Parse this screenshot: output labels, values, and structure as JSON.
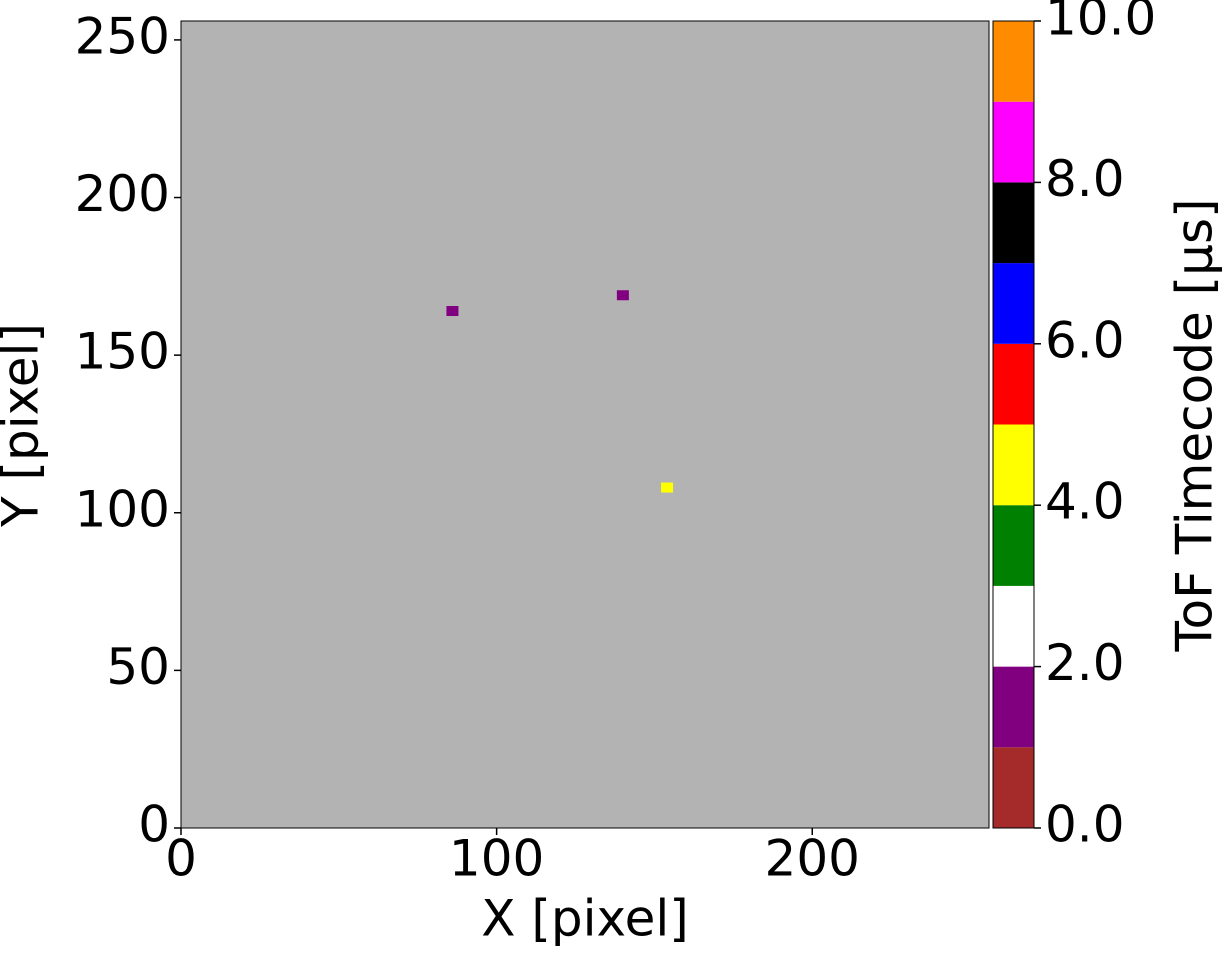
{
  "chart_data": {
    "type": "scatter",
    "xlabel": "X [pixel]",
    "ylabel": "Y [pixel]",
    "background": "#b3b3b3",
    "x": [
      86,
      140,
      154
    ],
    "y": [
      164,
      169,
      108
    ],
    "values": [
      1.5,
      1.5,
      4.5
    ],
    "xlim": [
      0,
      256
    ],
    "ylim": [
      0,
      256
    ],
    "xticks": [
      0,
      100,
      200
    ],
    "yticks": [
      0,
      50,
      100,
      150,
      200,
      250
    ],
    "colorbar": {
      "label": "ToF Timecode [µs]",
      "lim": [
        0,
        10
      ],
      "colors": [
        "#a52a2a",
        "#800080",
        "#ffffff",
        "#008000",
        "#ffff00",
        "#ff0000",
        "#0000ff",
        "#000000",
        "#ff00ff",
        "#ff8c00"
      ],
      "ticks": [
        {
          "value": 0,
          "label": "0.0"
        },
        {
          "value": 2,
          "label": "2.0"
        },
        {
          "value": 4,
          "label": "4.0"
        },
        {
          "value": 6,
          "label": "6.0"
        },
        {
          "value": 8,
          "label": "8.0"
        },
        {
          "value": 10,
          "label": "10.0"
        }
      ]
    }
  }
}
